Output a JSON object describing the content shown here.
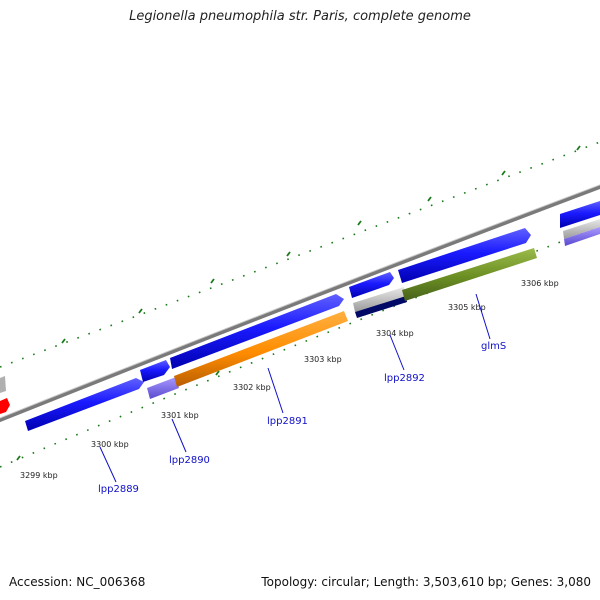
{
  "title": "Legionella pneumophila str. Paris, complete genome",
  "footer": {
    "accession": "Accession: NC_006368",
    "stats": "Topology: circular; Length: 3,503,610 bp; Genes: 3,080"
  },
  "ticks": [
    {
      "label": "3299 kbp"
    },
    {
      "label": "3300 kbp"
    },
    {
      "label": "3301 kbp"
    },
    {
      "label": "3302 kbp"
    },
    {
      "label": "3303 kbp"
    },
    {
      "label": "3304 kbp"
    },
    {
      "label": "3305 kbp"
    },
    {
      "label": "3306 kbp"
    }
  ],
  "genes": [
    {
      "label": "lpp2889"
    },
    {
      "label": "lpp2890"
    },
    {
      "label": "lpp2891"
    },
    {
      "label": "lpp2892"
    },
    {
      "label": "glmS"
    }
  ],
  "colors": {
    "cds_forward": "#1010e0",
    "cds_orange": "#ff8c00",
    "cds_green": "#6b8e23",
    "cds_lavender": "#7b68ee",
    "cds_navy": "#000066",
    "cds_red": "#ff0000",
    "backbone": "#808080",
    "gc_skew": "#1a7a1a",
    "label_text": "#1010c8"
  }
}
